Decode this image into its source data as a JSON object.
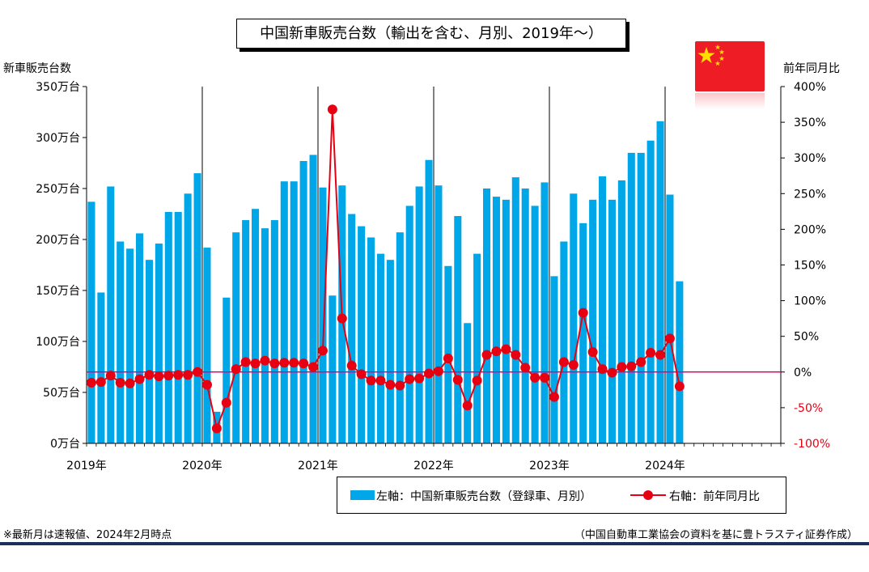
{
  "title": "中国新車販売台数（輸出を含む、月別、2019年～）",
  "left_axis_title": "新車販売台数",
  "right_axis_title": "前年同月比",
  "flag_icon": "china-flag-icon",
  "legend": {
    "bar_label": "左軸：中国新車販売台数（登録車、月別）",
    "line_label": "右軸：前年同月比"
  },
  "note": "※最新月は速報値、2024年2月時点",
  "source": "（中国自動車工業協会の資料を基に豊トラスティ証券作成）",
  "colors": {
    "bar": "#00a7e8",
    "line": "#e60012",
    "zero_line": "#e4007f"
  },
  "chart_data": {
    "type": "bar",
    "combo_line": true,
    "x_labels": [
      "2019年",
      "2020年",
      "2021年",
      "2022年",
      "2023年",
      "2024年"
    ],
    "left_axis": {
      "min": 0,
      "max": 350,
      "step": 50,
      "tick_labels": [
        "0万台",
        "50万台",
        "100万台",
        "150万台",
        "200万台",
        "250万台",
        "300万台",
        "350万台"
      ]
    },
    "right_axis": {
      "min": -100,
      "max": 400,
      "step": 50,
      "tick_labels": [
        "-100%",
        "-50%",
        "0%",
        "50%",
        "100%",
        "150%",
        "200%",
        "250%",
        "300%",
        "350%",
        "400%"
      ]
    },
    "series": [
      {
        "name": "左軸：中国新車販売台数（登録車、月別）",
        "axis": "left",
        "values": [
          237,
          148,
          252,
          198,
          191,
          206,
          180,
          196,
          227,
          227,
          245,
          265,
          192,
          31,
          143,
          207,
          219,
          230,
          211,
          219,
          257,
          257,
          277,
          283,
          251,
          145,
          253,
          225,
          213,
          202,
          186,
          180,
          207,
          233,
          252,
          278,
          253,
          174,
          223,
          118,
          186,
          250,
          242,
          239,
          261,
          250,
          233,
          256,
          164,
          198,
          245,
          216,
          239,
          262,
          239,
          258,
          285,
          285,
          297,
          316,
          244,
          159
        ]
      },
      {
        "name": "右軸：前年同月比",
        "axis": "right",
        "values": [
          -15,
          -14,
          -5,
          -15,
          -16,
          -10,
          -4,
          -6,
          -5,
          -4,
          -4,
          0,
          -18,
          -79,
          -43,
          4,
          14,
          12,
          16,
          12,
          13,
          13,
          12,
          7,
          30,
          368,
          75,
          9,
          -3,
          -12,
          -12,
          -18,
          -19,
          -10,
          -9,
          -2,
          1,
          19,
          -11,
          -47,
          -12,
          24,
          29,
          32,
          24,
          6,
          -8,
          -8,
          -35,
          14,
          10,
          83,
          28,
          4,
          -1,
          7,
          8,
          14,
          27,
          24,
          47,
          -20
        ]
      }
    ]
  }
}
